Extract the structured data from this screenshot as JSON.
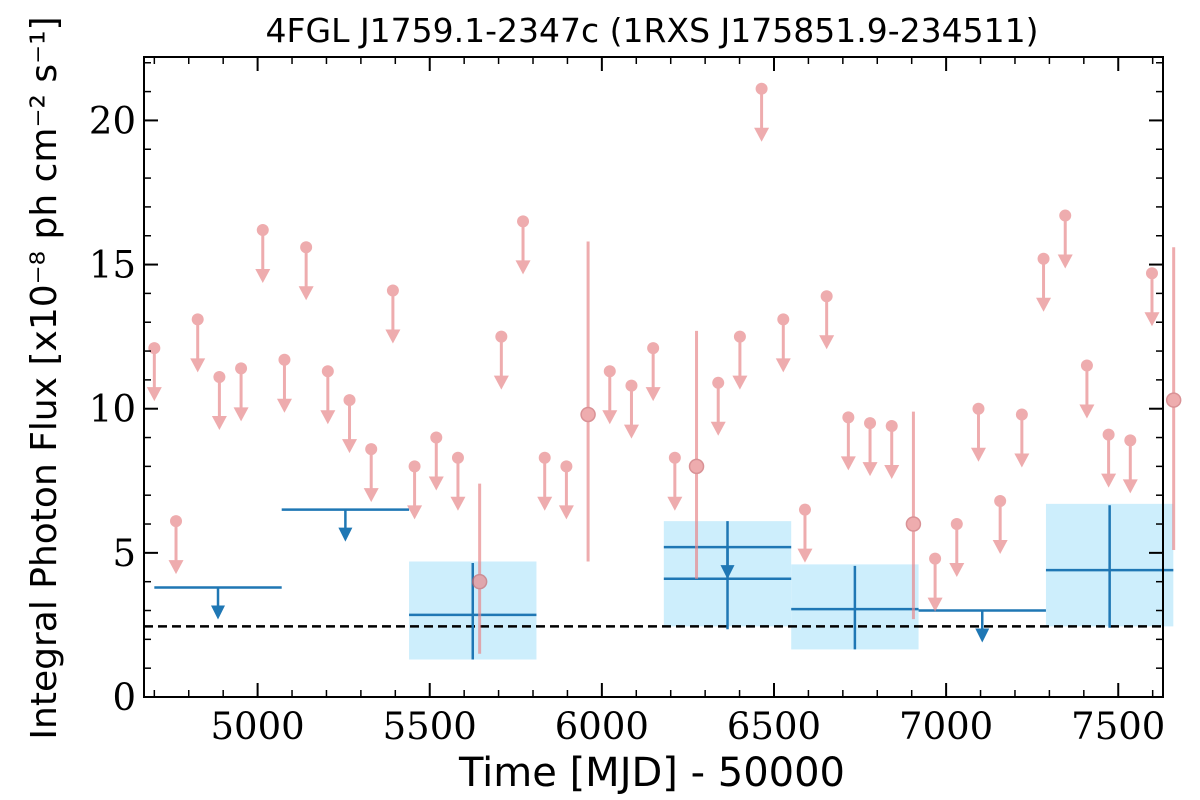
{
  "chart_data": {
    "type": "scatter",
    "title": "4FGL J1759.1-2347c (1RXS J175851.9-234511)",
    "xlabel": "Time [MJD] - 50000",
    "ylabel": "Integral Photon Flux [x10⁻⁸ ph cm⁻² s⁻¹]",
    "xlim": [
      4670,
      7630
    ],
    "ylim": [
      0,
      22.2
    ],
    "xticks": [
      5000,
      5500,
      6000,
      6500,
      7000,
      7500
    ],
    "yticks": [
      0,
      5,
      10,
      15,
      20
    ],
    "xtick_labels": [
      "5000",
      "5500",
      "6000",
      "6500",
      "7000",
      "7500"
    ],
    "ytick_labels": [
      "0",
      "5",
      "10",
      "15",
      "20"
    ],
    "grid": false,
    "reference_line": {
      "y": 2.45,
      "style": "dashed",
      "color": "#000000"
    },
    "colors": {
      "short_bins": "#e8898c",
      "long_bins": "#1f77b4",
      "long_bin_band": "#cdeefc"
    },
    "short_bins": {
      "bin_width_days": 30,
      "upper_limits": [
        {
          "x": 4700,
          "y": 12.1
        },
        {
          "x": 4763,
          "y": 6.1
        },
        {
          "x": 4826,
          "y": 13.1
        },
        {
          "x": 4889,
          "y": 11.1
        },
        {
          "x": 4952,
          "y": 11.4
        },
        {
          "x": 5015,
          "y": 16.2
        },
        {
          "x": 5078,
          "y": 11.7
        },
        {
          "x": 5141,
          "y": 15.6
        },
        {
          "x": 5204,
          "y": 11.3
        },
        {
          "x": 5267,
          "y": 10.3
        },
        {
          "x": 5330,
          "y": 8.6
        },
        {
          "x": 5393,
          "y": 14.1
        },
        {
          "x": 5456,
          "y": 8.0
        },
        {
          "x": 5519,
          "y": 9.0
        },
        {
          "x": 5582,
          "y": 8.3
        },
        {
          "x": 5708,
          "y": 12.5
        },
        {
          "x": 5771,
          "y": 16.5
        },
        {
          "x": 5834,
          "y": 8.3
        },
        {
          "x": 5897,
          "y": 8.0
        },
        {
          "x": 6023,
          "y": 11.3
        },
        {
          "x": 6086,
          "y": 10.8
        },
        {
          "x": 6149,
          "y": 12.1
        },
        {
          "x": 6212,
          "y": 8.3
        },
        {
          "x": 6338,
          "y": 10.9
        },
        {
          "x": 6401,
          "y": 12.5
        },
        {
          "x": 6464,
          "y": 21.1
        },
        {
          "x": 6527,
          "y": 13.1
        },
        {
          "x": 6590,
          "y": 6.5
        },
        {
          "x": 6653,
          "y": 13.9
        },
        {
          "x": 6716,
          "y": 9.7
        },
        {
          "x": 6779,
          "y": 9.5
        },
        {
          "x": 6842,
          "y": 9.4
        },
        {
          "x": 6968,
          "y": 4.8
        },
        {
          "x": 7031,
          "y": 6.0
        },
        {
          "x": 7094,
          "y": 10.0
        },
        {
          "x": 7157,
          "y": 6.8
        },
        {
          "x": 7220,
          "y": 9.8
        },
        {
          "x": 7283,
          "y": 15.2
        },
        {
          "x": 7346,
          "y": 16.7
        },
        {
          "x": 7409,
          "y": 11.5
        },
        {
          "x": 7472,
          "y": 9.1
        },
        {
          "x": 7535,
          "y": 8.9
        },
        {
          "x": 7598,
          "y": 14.7
        }
      ],
      "detections": [
        {
          "x": 5645,
          "y": 4.0,
          "ylow": 1.5,
          "yhigh": 7.4
        },
        {
          "x": 5960,
          "y": 9.8,
          "ylow": 4.7,
          "yhigh": 15.8
        },
        {
          "x": 6275,
          "y": 8.0,
          "ylow": 4.1,
          "yhigh": 12.7
        },
        {
          "x": 6905,
          "y": 6.0,
          "ylow": 2.7,
          "yhigh": 9.9
        },
        {
          "x": 7661,
          "y": 10.3,
          "ylow": 5.1,
          "yhigh": 15.6
        }
      ]
    },
    "long_bins": {
      "upper_limits": [
        {
          "x0": 4700,
          "x1": 5070,
          "y": 3.8
        },
        {
          "x0": 5070,
          "x1": 5440,
          "y": 6.5
        },
        {
          "x0": 6180,
          "x1": 6550,
          "y": 5.2
        },
        {
          "x0": 6920,
          "x1": 7290,
          "y": 3.0
        }
      ],
      "detections": [
        {
          "x0": 5440,
          "x1": 5810,
          "y": 2.85,
          "ylow": 1.3,
          "yhigh": 4.65,
          "band_low": 1.3,
          "band_high": 4.7
        },
        {
          "x0": 6180,
          "x1": 6550,
          "y": 4.1,
          "ylow": 2.35,
          "yhigh": 6.1,
          "band_low": 2.45,
          "band_high": 6.1
        },
        {
          "x0": 6550,
          "x1": 6920,
          "y": 3.05,
          "ylow": 1.65,
          "yhigh": 4.55,
          "band_low": 1.65,
          "band_high": 4.6
        },
        {
          "x0": 7290,
          "x1": 7660,
          "y": 4.4,
          "ylow": 2.4,
          "yhigh": 6.65,
          "band_low": 2.45,
          "band_high": 6.7
        }
      ]
    }
  }
}
